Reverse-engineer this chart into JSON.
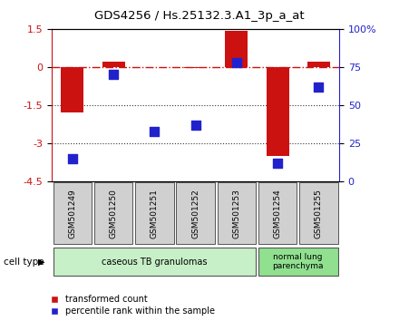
{
  "title": "GDS4256 / Hs.25132.3.A1_3p_a_at",
  "samples": [
    "GSM501249",
    "GSM501250",
    "GSM501251",
    "GSM501252",
    "GSM501253",
    "GSM501254",
    "GSM501255"
  ],
  "red_bars": [
    -1.8,
    0.22,
    0.0,
    -0.05,
    1.42,
    -3.5,
    0.22
  ],
  "blue_pct": [
    15,
    70,
    33,
    37,
    78,
    12,
    62
  ],
  "ylim": [
    -4.5,
    1.5
  ],
  "yticks_left": [
    -4.5,
    -3.0,
    -1.5,
    0.0,
    1.5
  ],
  "yticks_right": [
    0,
    25,
    50,
    75,
    100
  ],
  "hlines": [
    -1.5,
    -3.0
  ],
  "zero_line": 0.0,
  "group1_label": "caseous TB granulomas",
  "group1_samples": 5,
  "group2_label": "normal lung\nparenchyma",
  "group2_samples": 2,
  "group1_color": "#c8f0c8",
  "group2_color": "#90e090",
  "sample_box_color": "#d0d0d0",
  "red_color": "#cc1111",
  "blue_color": "#2222cc",
  "legend_red": "transformed count",
  "legend_blue": "percentile rank within the sample",
  "cell_type_label": "cell type",
  "right_axis_color": "#2222cc",
  "left_axis_color": "#cc1111",
  "zero_line_color": "#cc1111",
  "hline_color": "#333333",
  "bar_width": 0.55,
  "blue_marker_size": 55
}
